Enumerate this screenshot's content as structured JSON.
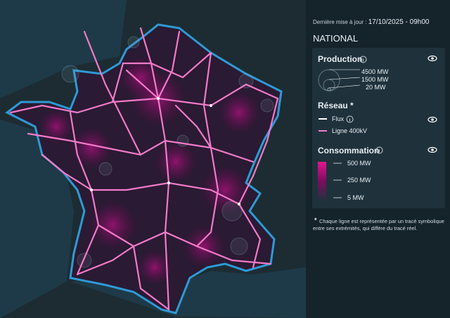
{
  "header": {
    "updated_label": "Dernière mise à jour :",
    "updated_value": "17/10/2025 - 09h00",
    "scope": "NATIONAL"
  },
  "legend": {
    "production": {
      "title": "Production",
      "sizes": [
        "4500 MW",
        "1500 MW",
        "20 MW"
      ]
    },
    "network": {
      "title": "Réseau",
      "marker": "*",
      "items": [
        "Flux",
        "Ligne 400kV"
      ]
    },
    "consumption": {
      "title": "Consommation",
      "scale": [
        "500 MW",
        "250 MW",
        "5 MW"
      ]
    }
  },
  "footnote": {
    "marker": "*",
    "text": "Chaque ligne est représentée par un tracé symbolique entre ses extrémités, qui diffère du tracé réel."
  }
}
